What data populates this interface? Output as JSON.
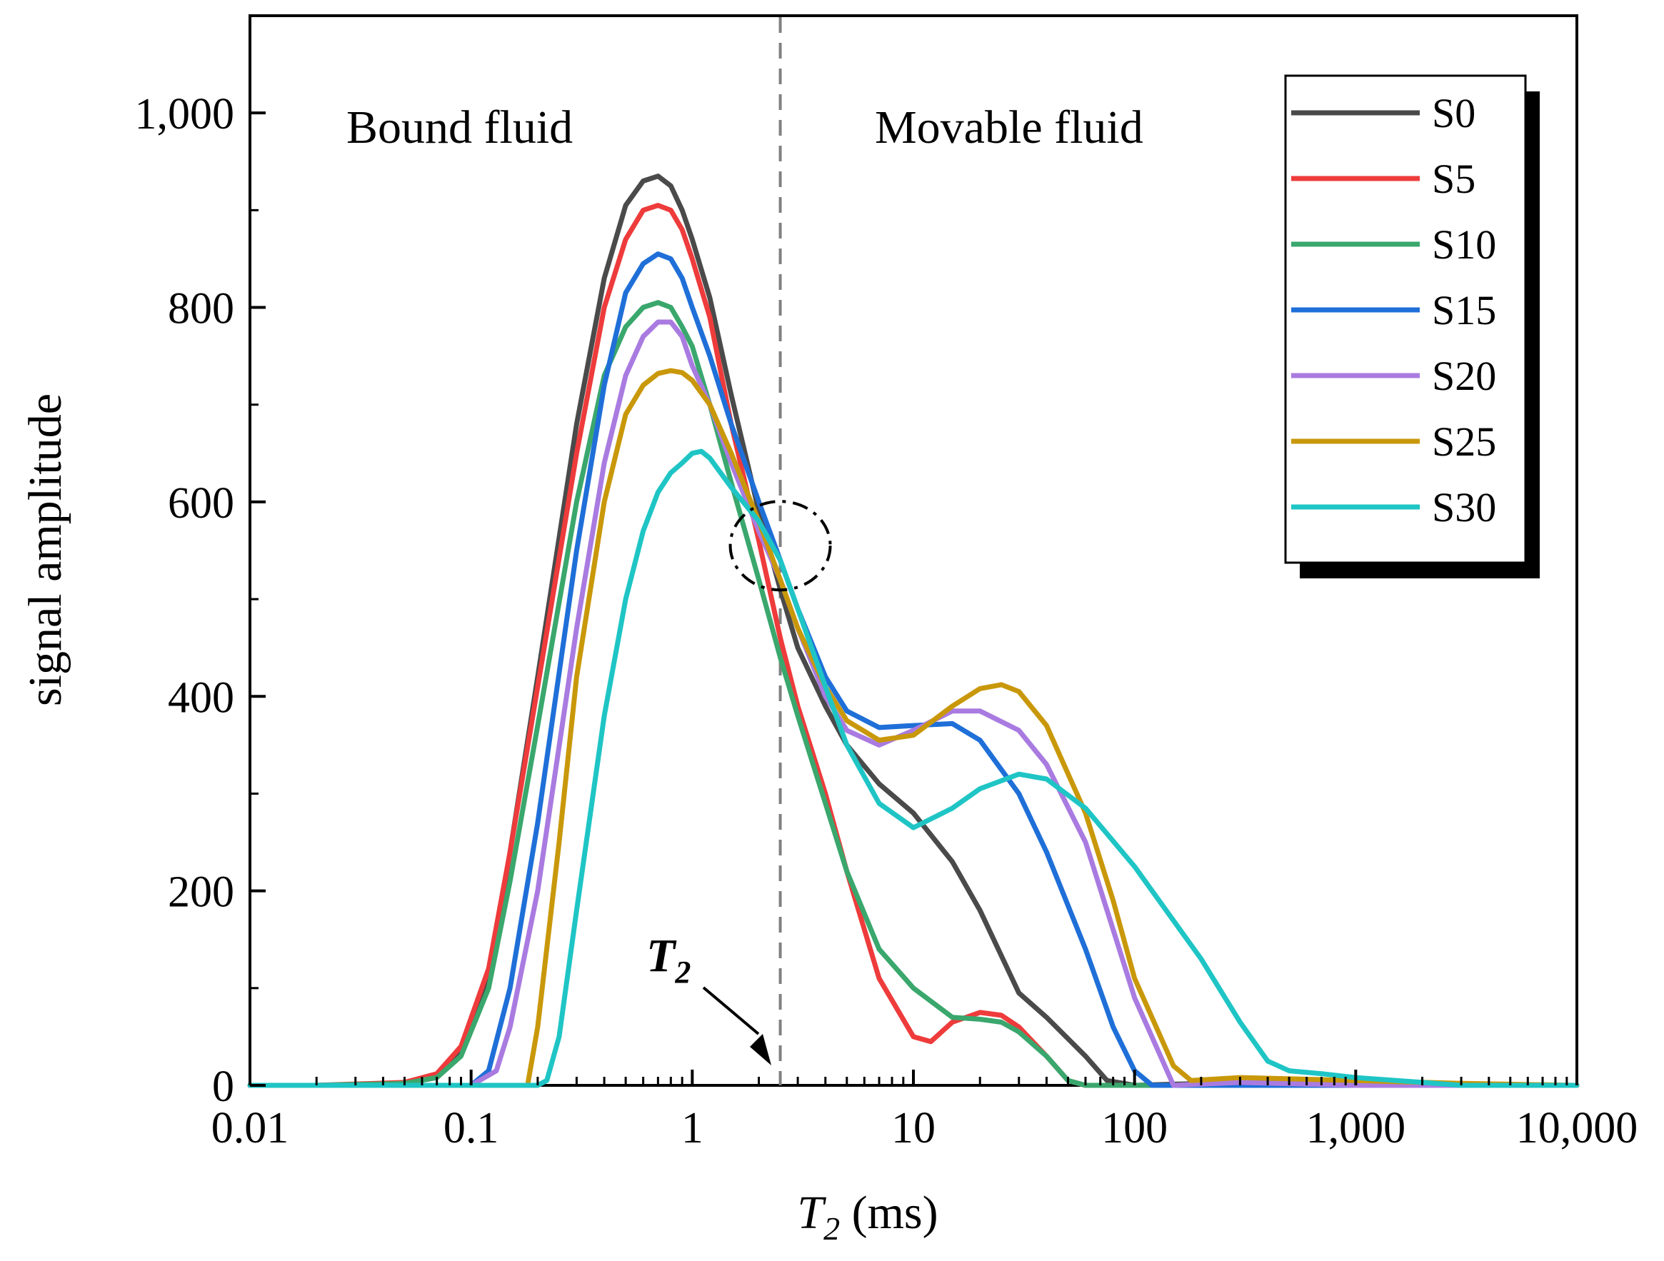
{
  "chart_data": {
    "type": "line",
    "title": "",
    "xlabel": {
      "symbol": "T",
      "subscript": "2",
      "unit": " (ms)"
    },
    "ylabel": "signal amplitude",
    "xscale": "log",
    "xlim": [
      0.01,
      10000
    ],
    "ylim": [
      0,
      1100
    ],
    "x_ticks": [
      {
        "value": 0.01,
        "label": "0.01"
      },
      {
        "value": 0.1,
        "label": "0.1"
      },
      {
        "value": 1,
        "label": "1"
      },
      {
        "value": 10,
        "label": "10"
      },
      {
        "value": 100,
        "label": "100"
      },
      {
        "value": 1000,
        "label": "1,000"
      },
      {
        "value": 10000,
        "label": "10,000"
      }
    ],
    "y_ticks": [
      {
        "value": 0,
        "label": "0"
      },
      {
        "value": 200,
        "label": "200"
      },
      {
        "value": 400,
        "label": "400"
      },
      {
        "value": 600,
        "label": "600"
      },
      {
        "value": 800,
        "label": "800"
      },
      {
        "value": 1000,
        "label": "1,000"
      }
    ],
    "cutoff": {
      "x": 2.5,
      "label_symbol": "T",
      "label_subscript": "2"
    },
    "regions": {
      "left": "Bound fluid",
      "right": "Movable fluid"
    },
    "highlight_ellipse": {
      "x": 2.5,
      "y": 555
    },
    "legend_position": "top-right",
    "series": [
      {
        "name": "S0",
        "color": "#4a4a4a",
        "x": [
          0.01,
          0.02,
          0.05,
          0.07,
          0.09,
          0.12,
          0.15,
          0.2,
          0.3,
          0.4,
          0.5,
          0.6,
          0.7,
          0.8,
          0.9,
          1.0,
          1.2,
          1.5,
          2.0,
          2.5,
          3,
          4,
          5,
          7,
          10,
          15,
          20,
          30,
          40,
          60,
          75,
          100,
          200,
          400,
          1000,
          3000,
          10000
        ],
        "values": [
          0,
          0,
          2,
          8,
          35,
          110,
          240,
          420,
          680,
          830,
          905,
          930,
          935,
          925,
          900,
          870,
          810,
          710,
          590,
          510,
          450,
          390,
          350,
          310,
          280,
          230,
          180,
          95,
          70,
          30,
          5,
          0,
          2,
          3,
          2,
          0,
          0
        ]
      },
      {
        "name": "S5",
        "color": "#ee3b3b",
        "x": [
          0.01,
          0.02,
          0.05,
          0.07,
          0.09,
          0.12,
          0.15,
          0.2,
          0.3,
          0.4,
          0.5,
          0.6,
          0.7,
          0.8,
          0.9,
          1.0,
          1.2,
          1.5,
          2.0,
          2.5,
          3,
          4,
          5,
          7,
          10,
          12,
          15,
          20,
          25,
          30,
          40,
          50,
          60,
          100,
          500,
          10000
        ],
        "values": [
          0,
          0,
          3,
          12,
          40,
          120,
          240,
          410,
          650,
          800,
          870,
          900,
          905,
          900,
          880,
          850,
          790,
          680,
          560,
          460,
          390,
          300,
          220,
          110,
          50,
          45,
          65,
          75,
          72,
          60,
          30,
          5,
          0,
          0,
          0,
          0
        ]
      },
      {
        "name": "S10",
        "color": "#3aa76d",
        "x": [
          0.01,
          0.02,
          0.05,
          0.07,
          0.09,
          0.12,
          0.15,
          0.2,
          0.3,
          0.4,
          0.5,
          0.6,
          0.7,
          0.8,
          0.9,
          1.0,
          1.2,
          1.5,
          2.0,
          2.5,
          3,
          4,
          5,
          7,
          10,
          15,
          20,
          25,
          30,
          40,
          50,
          60,
          100,
          500,
          10000
        ],
        "values": [
          0,
          0,
          2,
          8,
          30,
          100,
          210,
          370,
          600,
          730,
          780,
          800,
          805,
          800,
          780,
          760,
          700,
          620,
          520,
          440,
          380,
          290,
          220,
          140,
          100,
          70,
          68,
          65,
          55,
          30,
          5,
          0,
          0,
          0,
          0
        ]
      },
      {
        "name": "S15",
        "color": "#1f6fd8",
        "x": [
          0.01,
          0.05,
          0.1,
          0.12,
          0.15,
          0.2,
          0.3,
          0.4,
          0.5,
          0.6,
          0.7,
          0.8,
          0.9,
          1.0,
          1.2,
          1.5,
          2.0,
          2.5,
          3,
          4,
          5,
          7,
          10,
          15,
          20,
          30,
          40,
          60,
          80,
          100,
          120,
          300,
          1000,
          10000
        ],
        "values": [
          0,
          0,
          0,
          15,
          100,
          270,
          550,
          720,
          815,
          845,
          855,
          850,
          830,
          800,
          750,
          680,
          600,
          540,
          490,
          420,
          385,
          368,
          370,
          372,
          355,
          300,
          240,
          140,
          60,
          15,
          0,
          0,
          0,
          0
        ]
      },
      {
        "name": "S20",
        "color": "#a97be0",
        "x": [
          0.01,
          0.1,
          0.13,
          0.15,
          0.2,
          0.3,
          0.4,
          0.5,
          0.6,
          0.7,
          0.8,
          0.9,
          1.0,
          1.2,
          1.5,
          2.0,
          2.5,
          3,
          4,
          5,
          7,
          10,
          15,
          20,
          30,
          40,
          60,
          80,
          100,
          150,
          300,
          1000,
          10000
        ],
        "values": [
          0,
          0,
          15,
          60,
          200,
          470,
          640,
          730,
          770,
          785,
          785,
          770,
          740,
          700,
          640,
          570,
          520,
          470,
          400,
          365,
          350,
          365,
          385,
          385,
          365,
          330,
          250,
          160,
          90,
          0,
          3,
          0,
          0
        ]
      },
      {
        "name": "S25",
        "color": "#c9980a",
        "x": [
          0.01,
          0.02,
          0.15,
          0.18,
          0.2,
          0.25,
          0.3,
          0.4,
          0.5,
          0.6,
          0.7,
          0.8,
          0.9,
          1.0,
          1.2,
          1.5,
          2.0,
          2.5,
          3,
          4,
          5,
          7,
          10,
          15,
          20,
          25,
          30,
          40,
          60,
          80,
          100,
          150,
          180,
          300,
          1000,
          3000,
          10000
        ],
        "values": [
          0,
          0,
          0,
          0,
          60,
          250,
          420,
          600,
          690,
          720,
          732,
          735,
          733,
          725,
          700,
          650,
          580,
          520,
          470,
          410,
          375,
          355,
          360,
          390,
          408,
          412,
          405,
          370,
          280,
          190,
          110,
          20,
          5,
          8,
          5,
          2,
          0
        ]
      },
      {
        "name": "S30",
        "color": "#1fc5c5",
        "x": [
          0.01,
          0.15,
          0.2,
          0.22,
          0.25,
          0.3,
          0.4,
          0.5,
          0.6,
          0.7,
          0.8,
          0.9,
          1.0,
          1.1,
          1.2,
          1.5,
          2.0,
          2.5,
          3,
          4,
          5,
          7,
          10,
          15,
          20,
          30,
          40,
          60,
          100,
          200,
          300,
          400,
          500,
          700,
          1000,
          2000,
          3000,
          10000
        ],
        "values": [
          0,
          0,
          0,
          5,
          50,
          180,
          380,
          500,
          570,
          610,
          630,
          640,
          650,
          652,
          645,
          615,
          580,
          540,
          490,
          410,
          350,
          290,
          265,
          285,
          305,
          320,
          315,
          285,
          225,
          130,
          65,
          25,
          15,
          12,
          8,
          3,
          0,
          0
        ]
      }
    ]
  }
}
